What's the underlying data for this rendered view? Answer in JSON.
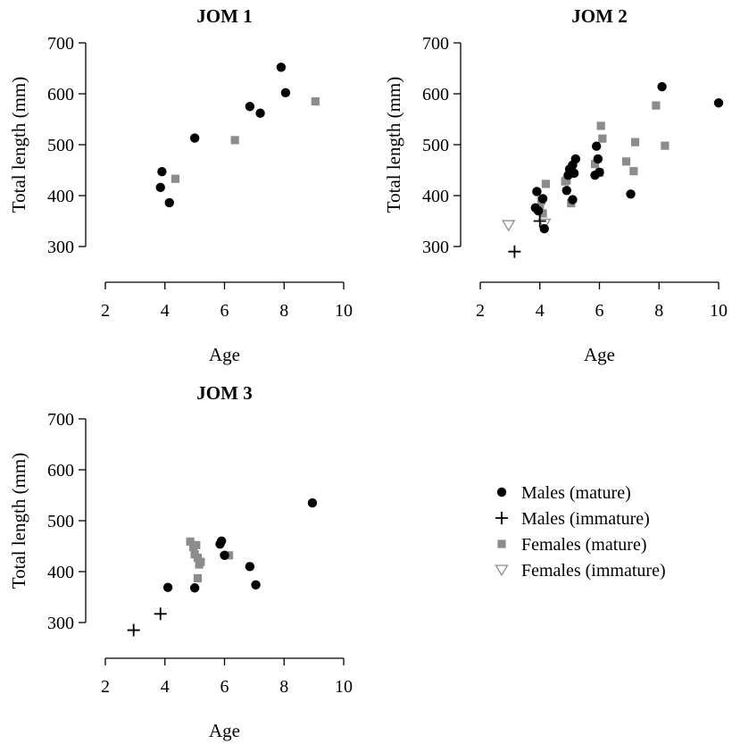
{
  "chart_data": [
    {
      "type": "scatter",
      "title": "JOM 1",
      "xlabel": "Age",
      "ylabel": "Total length (mm)",
      "xlim": [
        2,
        10
      ],
      "ylim": [
        300,
        700
      ],
      "xticks": [
        2,
        4,
        6,
        8,
        10
      ],
      "yticks": [
        300,
        400,
        500,
        600,
        700
      ],
      "series": [
        {
          "name": "Males (mature)",
          "marker": "circle",
          "color": "#000000",
          "points": [
            [
              3.9,
              447
            ],
            [
              3.85,
              416
            ],
            [
              4.15,
              386
            ],
            [
              5.0,
              513
            ],
            [
              6.85,
              575
            ],
            [
              7.2,
              562
            ],
            [
              7.9,
              652
            ],
            [
              8.05,
              602
            ]
          ]
        },
        {
          "name": "Males (immature)",
          "marker": "plus",
          "color": "#000000",
          "points": []
        },
        {
          "name": "Females (mature)",
          "marker": "square",
          "color": "#8c8c8c",
          "points": [
            [
              4.35,
              433
            ],
            [
              6.35,
              509
            ],
            [
              9.05,
              585
            ]
          ]
        },
        {
          "name": "Females (immature)",
          "marker": "triangle-down",
          "color": "#8c8c8c",
          "points": []
        }
      ]
    },
    {
      "type": "scatter",
      "title": "JOM 2",
      "xlabel": "Age",
      "ylabel": "Total length (mm)",
      "xlim": [
        2,
        10
      ],
      "ylim": [
        300,
        700
      ],
      "xticks": [
        2,
        4,
        6,
        8,
        10
      ],
      "yticks": [
        300,
        400,
        500,
        600,
        700
      ],
      "series": [
        {
          "name": "Males (mature)",
          "marker": "circle",
          "color": "#000000",
          "points": [
            [
              3.9,
              408
            ],
            [
              3.85,
              376
            ],
            [
              3.95,
              370
            ],
            [
              4.1,
              394
            ],
            [
              4.15,
              335
            ],
            [
              4.9,
              410
            ],
            [
              4.95,
              440
            ],
            [
              5.0,
              452
            ],
            [
              5.05,
              447
            ],
            [
              5.1,
              460
            ],
            [
              5.15,
              444
            ],
            [
              5.2,
              472
            ],
            [
              5.1,
              392
            ],
            [
              5.9,
              497
            ],
            [
              5.85,
              440
            ],
            [
              5.95,
              472
            ],
            [
              6.0,
              446
            ],
            [
              7.05,
              403
            ],
            [
              8.1,
              614
            ],
            [
              10.0,
              582
            ]
          ]
        },
        {
          "name": "Males (immature)",
          "marker": "plus",
          "color": "#000000",
          "points": [
            [
              3.15,
              290
            ],
            [
              4.0,
              350
            ]
          ]
        },
        {
          "name": "Females (mature)",
          "marker": "square",
          "color": "#8c8c8c",
          "points": [
            [
              4.0,
              375
            ],
            [
              4.05,
              390
            ],
            [
              4.1,
              365
            ],
            [
              4.2,
              423
            ],
            [
              4.85,
              428
            ],
            [
              4.9,
              430
            ],
            [
              5.05,
              385
            ],
            [
              5.85,
              462
            ],
            [
              6.05,
              537
            ],
            [
              6.1,
              512
            ],
            [
              6.0,
              445
            ],
            [
              6.9,
              467
            ],
            [
              7.15,
              448
            ],
            [
              7.2,
              505
            ],
            [
              7.9,
              577
            ],
            [
              8.2,
              498
            ]
          ]
        },
        {
          "name": "Females (immature)",
          "marker": "triangle-down",
          "color": "#8c8c8c",
          "points": [
            [
              2.95,
              342
            ],
            [
              4.15,
              345
            ]
          ]
        }
      ]
    },
    {
      "type": "scatter",
      "title": "JOM 3",
      "xlabel": "Age",
      "ylabel": "Total length (mm)",
      "xlim": [
        2,
        10
      ],
      "ylim": [
        300,
        700
      ],
      "xticks": [
        2,
        4,
        6,
        8,
        10
      ],
      "yticks": [
        300,
        400,
        500,
        600,
        700
      ],
      "series": [
        {
          "name": "Males (mature)",
          "marker": "circle",
          "color": "#000000",
          "points": [
            [
              4.1,
              369
            ],
            [
              5.0,
              368
            ],
            [
              5.85,
              454
            ],
            [
              5.9,
              460
            ],
            [
              6.0,
              432
            ],
            [
              6.85,
              410
            ],
            [
              7.05,
              374
            ],
            [
              8.95,
              535
            ]
          ]
        },
        {
          "name": "Males (immature)",
          "marker": "plus",
          "color": "#000000",
          "points": [
            [
              2.95,
              285
            ],
            [
              3.85,
              317
            ]
          ]
        },
        {
          "name": "Females (mature)",
          "marker": "square",
          "color": "#8c8c8c",
          "points": [
            [
              4.85,
              459
            ],
            [
              4.95,
              448
            ],
            [
              5.0,
              434
            ],
            [
              5.05,
              452
            ],
            [
              5.1,
              427
            ],
            [
              5.15,
              414
            ],
            [
              5.2,
              419
            ],
            [
              5.1,
              387
            ],
            [
              6.15,
              432
            ]
          ]
        },
        {
          "name": "Females (immature)",
          "marker": "triangle-down",
          "color": "#8c8c8c",
          "points": []
        }
      ]
    }
  ],
  "legend": {
    "placement": "bottom-right",
    "items": [
      {
        "label": "Males (mature)",
        "marker": "circle",
        "color": "#000000"
      },
      {
        "label": "Males (immature)",
        "marker": "plus",
        "color": "#000000"
      },
      {
        "label": "Females (mature)",
        "marker": "square",
        "color": "#8c8c8c"
      },
      {
        "label": "Females (immature)",
        "marker": "triangle-down",
        "color": "#8c8c8c"
      }
    ]
  }
}
